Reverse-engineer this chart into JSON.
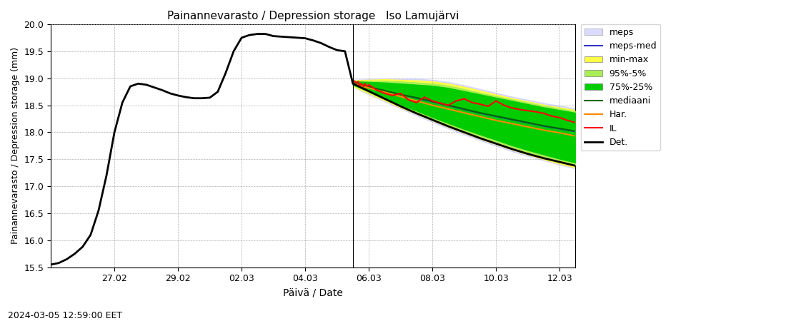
{
  "title": "Painannevarasto / Depression storage   Iso Lamujärvi",
  "xlabel": "Päivä / Date",
  "ylabel": "Painannevarasto / Depression storage (mm)",
  "timestamp_label": "2024-03-05 12:59:00 EET",
  "ylim": [
    15.5,
    20.0
  ],
  "yticks": [
    15.5,
    16.0,
    16.5,
    17.0,
    17.5,
    18.0,
    18.5,
    19.0,
    19.5,
    20.0
  ],
  "vline_date": "2024-03-05 12:00:00",
  "colors": {
    "meps_fill": "#ccccff",
    "meps_med": "#3333cc",
    "min_max_fill": "#ffff44",
    "pct95_5_fill": "#aaee55",
    "pct75_25_fill": "#00cc00",
    "mediaani": "#006600",
    "har": "#ff8800",
    "il": "#ff0000",
    "det": "#000000",
    "grid": "#aaaaaa",
    "vline": "#000000"
  },
  "det_historical_x": [
    "2024-02-25 00:00:00",
    "2024-02-25 06:00:00",
    "2024-02-25 12:00:00",
    "2024-02-25 18:00:00",
    "2024-02-26 00:00:00",
    "2024-02-26 06:00:00",
    "2024-02-26 12:00:00",
    "2024-02-26 18:00:00",
    "2024-02-27 00:00:00",
    "2024-02-27 06:00:00",
    "2024-02-27 12:00:00",
    "2024-02-27 18:00:00",
    "2024-02-28 00:00:00",
    "2024-02-28 06:00:00",
    "2024-02-28 12:00:00",
    "2024-02-28 18:00:00",
    "2024-02-29 00:00:00",
    "2024-02-29 06:00:00",
    "2024-02-29 12:00:00",
    "2024-02-29 18:00:00",
    "2024-03-01 00:00:00",
    "2024-03-01 06:00:00",
    "2024-03-01 12:00:00",
    "2024-03-01 18:00:00",
    "2024-03-02 00:00:00",
    "2024-03-02 06:00:00",
    "2024-03-02 12:00:00",
    "2024-03-02 18:00:00",
    "2024-03-03 00:00:00",
    "2024-03-03 06:00:00",
    "2024-03-03 12:00:00",
    "2024-03-03 18:00:00",
    "2024-03-04 00:00:00",
    "2024-03-04 06:00:00",
    "2024-03-04 12:00:00",
    "2024-03-04 18:00:00",
    "2024-03-05 00:00:00",
    "2024-03-05 06:00:00",
    "2024-03-05 12:00:00"
  ],
  "det_historical_y": [
    15.55,
    15.58,
    15.65,
    15.75,
    15.88,
    16.1,
    16.55,
    17.2,
    18.0,
    18.55,
    18.85,
    18.9,
    18.88,
    18.83,
    18.78,
    18.72,
    18.68,
    18.65,
    18.63,
    18.63,
    18.64,
    18.75,
    19.1,
    19.5,
    19.75,
    19.8,
    19.82,
    19.82,
    19.78,
    19.77,
    19.76,
    19.75,
    19.74,
    19.7,
    19.65,
    19.58,
    19.52,
    19.5,
    18.9
  ],
  "det_forecast_x": [
    "2024-03-05 12:00:00",
    "2024-03-06 00:00:00",
    "2024-03-06 12:00:00",
    "2024-03-07 00:00:00",
    "2024-03-07 12:00:00",
    "2024-03-08 00:00:00",
    "2024-03-08 12:00:00",
    "2024-03-09 00:00:00",
    "2024-03-09 12:00:00",
    "2024-03-10 00:00:00",
    "2024-03-10 12:00:00",
    "2024-03-11 00:00:00",
    "2024-03-11 12:00:00",
    "2024-03-12 00:00:00",
    "2024-03-12 12:00:00"
  ],
  "det_forecast_y": [
    18.9,
    18.76,
    18.62,
    18.48,
    18.35,
    18.23,
    18.11,
    18.0,
    17.89,
    17.79,
    17.69,
    17.6,
    17.52,
    17.45,
    17.38
  ],
  "forecast_x": [
    "2024-03-05 12:00:00",
    "2024-03-06 00:00:00",
    "2024-03-06 12:00:00",
    "2024-03-07 00:00:00",
    "2024-03-07 12:00:00",
    "2024-03-08 00:00:00",
    "2024-03-08 12:00:00",
    "2024-03-09 00:00:00",
    "2024-03-09 12:00:00",
    "2024-03-10 00:00:00",
    "2024-03-10 12:00:00",
    "2024-03-11 00:00:00",
    "2024-03-11 12:00:00",
    "2024-03-12 00:00:00",
    "2024-03-12 12:00:00"
  ],
  "meps_lower": [
    18.84,
    18.7,
    18.57,
    18.44,
    18.31,
    18.19,
    18.07,
    17.96,
    17.85,
    17.75,
    17.65,
    17.56,
    17.48,
    17.4,
    17.33
  ],
  "meps_upper": [
    18.97,
    18.98,
    18.99,
    18.99,
    18.99,
    18.97,
    18.93,
    18.87,
    18.8,
    18.73,
    18.66,
    18.6,
    18.54,
    18.49,
    18.44
  ],
  "min_max_lower": [
    18.85,
    18.72,
    18.59,
    18.46,
    18.34,
    18.22,
    18.1,
    17.99,
    17.88,
    17.78,
    17.68,
    17.59,
    17.5,
    17.42,
    17.35
  ],
  "min_max_upper": [
    18.96,
    18.97,
    18.98,
    18.97,
    18.96,
    18.94,
    18.9,
    18.84,
    18.77,
    18.7,
    18.63,
    18.57,
    18.51,
    18.46,
    18.41
  ],
  "pct95_lower": [
    18.87,
    18.74,
    18.61,
    18.49,
    18.37,
    18.25,
    18.14,
    18.03,
    17.92,
    17.82,
    17.72,
    17.63,
    17.55,
    17.47,
    17.4
  ],
  "pct95_upper": [
    18.95,
    18.95,
    18.95,
    18.94,
    18.92,
    18.9,
    18.86,
    18.8,
    18.73,
    18.67,
    18.61,
    18.55,
    18.49,
    18.44,
    18.39
  ],
  "pct75_lower": [
    18.88,
    18.76,
    18.63,
    18.51,
    18.4,
    18.28,
    18.17,
    18.06,
    17.96,
    17.86,
    17.76,
    17.67,
    17.59,
    17.51,
    17.44
  ],
  "pct75_upper": [
    18.94,
    18.93,
    18.92,
    18.9,
    18.88,
    18.86,
    18.82,
    18.76,
    18.7,
    18.64,
    18.58,
    18.52,
    18.46,
    18.41,
    18.36
  ],
  "mediaani_y": [
    18.91,
    18.84,
    18.77,
    18.7,
    18.64,
    18.57,
    18.5,
    18.43,
    18.36,
    18.3,
    18.24,
    18.18,
    18.12,
    18.07,
    18.02
  ],
  "meps_med_y": [
    18.91,
    18.84,
    18.77,
    18.7,
    18.63,
    18.56,
    18.49,
    18.42,
    18.35,
    18.29,
    18.23,
    18.17,
    18.11,
    18.06,
    18.01
  ],
  "il_y": [
    18.92,
    18.95,
    18.93,
    18.91,
    18.94,
    18.86,
    18.9,
    18.88,
    18.85,
    18.9,
    18.87,
    18.85,
    18.88,
    18.78,
    18.72,
    18.68,
    18.72,
    18.6,
    18.55,
    18.65,
    18.58,
    18.54,
    18.5,
    18.58,
    18.62,
    18.55,
    18.52,
    18.48,
    18.58,
    18.5,
    18.45,
    18.42,
    18.4,
    18.38,
    18.35,
    18.3,
    18.27,
    18.22,
    18.18,
    18.15,
    18.12,
    18.1,
    18.07,
    18.04,
    18.01
  ],
  "il_x": [
    "2024-03-05 12:00:00",
    "2024-03-05 13:00:00",
    "2024-03-05 14:00:00",
    "2024-03-05 15:00:00",
    "2024-03-05 16:00:00",
    "2024-03-05 17:00:00",
    "2024-03-05 18:00:00",
    "2024-03-05 19:00:00",
    "2024-03-05 20:00:00",
    "2024-03-05 21:00:00",
    "2024-03-05 22:00:00",
    "2024-03-05 23:00:00",
    "2024-03-06 00:00:00",
    "2024-03-06 06:00:00",
    "2024-03-06 12:00:00",
    "2024-03-06 18:00:00",
    "2024-03-07 00:00:00",
    "2024-03-07 06:00:00",
    "2024-03-07 12:00:00",
    "2024-03-07 18:00:00",
    "2024-03-08 00:00:00",
    "2024-03-08 06:00:00",
    "2024-03-08 12:00:00",
    "2024-03-08 18:00:00",
    "2024-03-09 00:00:00",
    "2024-03-09 06:00:00",
    "2024-03-09 12:00:00",
    "2024-03-09 18:00:00",
    "2024-03-10 00:00:00",
    "2024-03-10 06:00:00",
    "2024-03-10 12:00:00",
    "2024-03-10 18:00:00",
    "2024-03-11 00:00:00",
    "2024-03-11 06:00:00",
    "2024-03-11 12:00:00",
    "2024-03-11 18:00:00",
    "2024-03-12 00:00:00",
    "2024-03-12 06:00:00",
    "2024-03-12 12:00:00",
    "2024-03-12 18:00:00",
    "2024-03-13 00:00:00",
    "2024-03-13 06:00:00",
    "2024-03-13 12:00:00",
    "2024-03-13 18:00:00",
    "2024-03-14 00:00:00"
  ],
  "har_y": [
    18.9,
    18.82,
    18.74,
    18.66,
    18.58,
    18.5,
    18.43,
    18.36,
    18.29,
    18.22,
    18.16,
    18.1,
    18.04,
    17.99,
    17.93
  ],
  "xtick_dates": [
    "2024-02-27 00:00:00",
    "2024-02-29 00:00:00",
    "2024-03-02 00:00:00",
    "2024-03-04 00:00:00",
    "2024-03-06 00:00:00",
    "2024-03-08 00:00:00",
    "2024-03-10 00:00:00",
    "2024-03-12 00:00:00"
  ],
  "xtick_labels": [
    "27.02",
    "29.02",
    "02.03",
    "04.03",
    "06.03",
    "08.03",
    "10.03",
    "12.03"
  ],
  "xlim_start": "2024-02-25 00:00:00",
  "xlim_end": "2024-03-12 12:00:00"
}
